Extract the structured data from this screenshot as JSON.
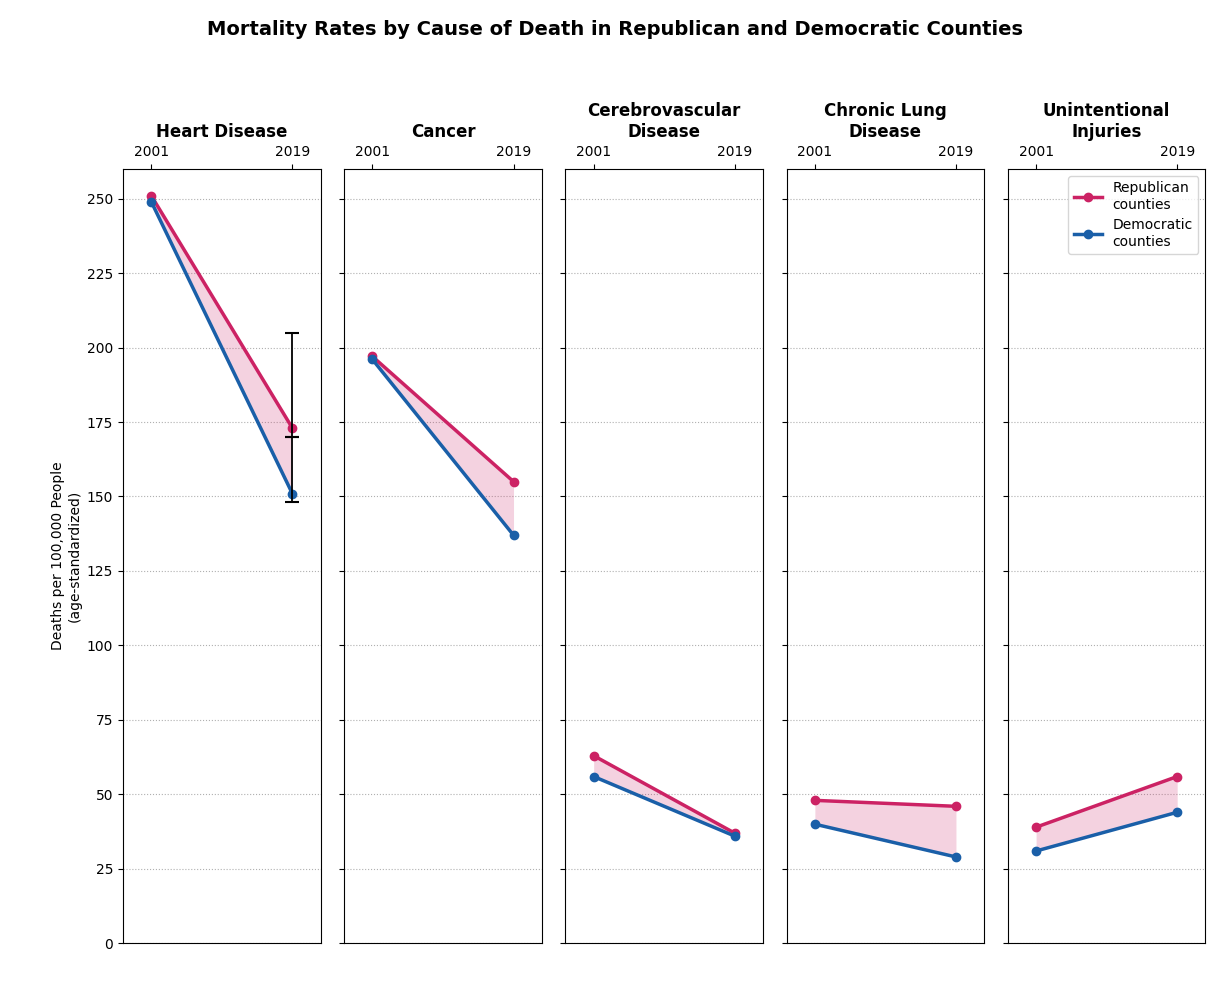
{
  "chart_data": {
    "type": "slope",
    "title": "Mortality Rates by Cause of Death in Republican and Democratic Counties",
    "ylabel": "Deaths per 100,000 People\n(age-standardized)",
    "categories": [
      "Heart Disease",
      "Cancer",
      "Cerebrovascular\nDisease",
      "Chronic Lung\nDisease",
      "Unintentional\nInjuries"
    ],
    "x": [
      "2001",
      "2019"
    ],
    "series": [
      {
        "name": "Republican\ncounties",
        "color": "#cc2264",
        "marker": "o",
        "values": [
          [
            251,
            173
          ],
          [
            197,
            155
          ],
          [
            63,
            37
          ],
          [
            48,
            46
          ],
          [
            39,
            56
          ]
        ],
        "error_bars": [
          [
            null,
            [
              170,
              205
            ]
          ],
          null,
          null,
          null,
          null
        ]
      },
      {
        "name": "Democratic\ncounties",
        "color": "#1a5fa8",
        "marker": "o",
        "values": [
          [
            249,
            151
          ],
          [
            196,
            137
          ],
          [
            56,
            36
          ],
          [
            40,
            29
          ],
          [
            31,
            44
          ]
        ],
        "error_bars": [
          [
            null,
            [
              148,
              170
            ]
          ],
          null,
          null,
          null,
          null
        ]
      }
    ],
    "ylim": [
      0,
      260
    ],
    "yticks": [
      0,
      25,
      50,
      75,
      100,
      125,
      150,
      175,
      200,
      225,
      250
    ],
    "grid": true,
    "legend": "upper right"
  }
}
